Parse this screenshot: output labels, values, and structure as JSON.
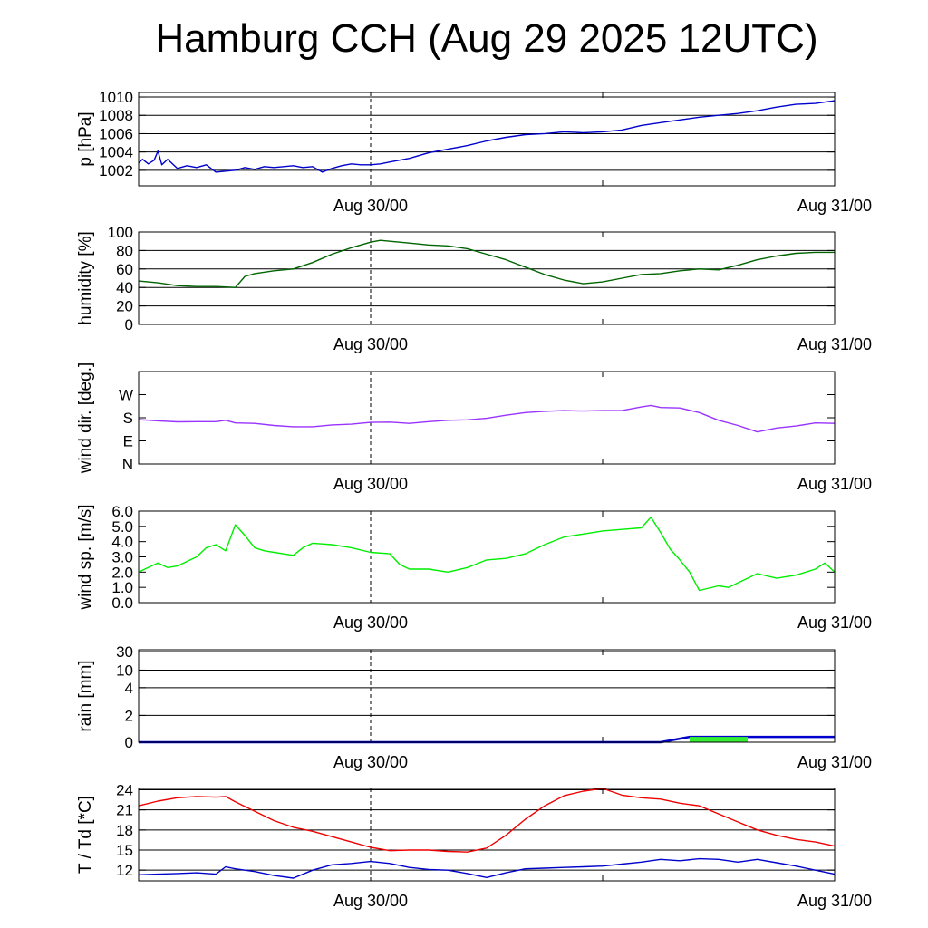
{
  "title": "Hamburg CCH (Aug 29 2025 12UTC)",
  "chart_data": [
    {
      "type": "line",
      "ylabel": "p [hPa]",
      "yticks": [
        1002,
        1004,
        1006,
        1008,
        1010
      ],
      "ylim": [
        1000.3,
        1010.5
      ],
      "x_tick_labels": [
        "Aug 30/00",
        "Aug 31/00"
      ],
      "grid": "horizontal",
      "color": "#0000cc",
      "series": [
        {
          "x": [
            0,
            0.2,
            0.5,
            0.8,
            1,
            1.2,
            1.5,
            2,
            2.5,
            3,
            3.5,
            4,
            4.5,
            5,
            5.5,
            6,
            6.5,
            7,
            7.5,
            8,
            8.5,
            9,
            9.5,
            10,
            10.5,
            11,
            11.5,
            12,
            12.5,
            13,
            14,
            15,
            16,
            17,
            18,
            19,
            20,
            21,
            22,
            23,
            24,
            25,
            26,
            27,
            28,
            29,
            30,
            31,
            32,
            33,
            34,
            35,
            36
          ],
          "values": [
            1002.8,
            1003.2,
            1002.7,
            1003.1,
            1004.1,
            1002.6,
            1003.2,
            1002.2,
            1002.5,
            1002.3,
            1002.6,
            1001.8,
            1001.9,
            1002.0,
            1002.3,
            1002.1,
            1002.4,
            1002.3,
            1002.4,
            1002.5,
            1002.3,
            1002.4,
            1001.8,
            1002.2,
            1002.5,
            1002.7,
            1002.6,
            1002.6,
            1002.7,
            1002.9,
            1003.3,
            1003.9,
            1004.3,
            1004.7,
            1005.2,
            1005.6,
            1005.9,
            1006.0,
            1006.2,
            1006.1,
            1006.2,
            1006.4,
            1006.9,
            1007.2,
            1007.5,
            1007.8,
            1008.0,
            1008.2,
            1008.5,
            1008.9,
            1009.2,
            1009.3,
            1009.6
          ]
        }
      ]
    },
    {
      "type": "line",
      "ylabel": "humidity [%]",
      "yticks": [
        0,
        20,
        40,
        60,
        80,
        100
      ],
      "ylim": [
        0,
        100
      ],
      "x_tick_labels": [
        "Aug 30/00",
        "Aug 31/00"
      ],
      "grid": "horizontal",
      "color": "#006400",
      "series": [
        {
          "x": [
            0,
            1,
            2,
            3,
            4,
            5,
            5.5,
            6,
            7,
            8,
            9,
            10,
            11,
            12,
            12.5,
            13,
            14,
            15,
            16,
            17,
            18,
            19,
            20,
            21,
            22,
            23,
            24,
            25,
            26,
            27,
            28,
            29,
            30,
            31,
            32,
            33,
            34,
            35,
            36
          ],
          "values": [
            47,
            45,
            42,
            41,
            41,
            40,
            52,
            55,
            58,
            60,
            67,
            76,
            83,
            89,
            91,
            90,
            88,
            86,
            85,
            82,
            76,
            70,
            62,
            54,
            48,
            44,
            46,
            50,
            54,
            55,
            58,
            60,
            59,
            64,
            70,
            74,
            77,
            78,
            78
          ]
        }
      ]
    },
    {
      "type": "line",
      "ylabel": "wind dir. [deg.]",
      "ytick_labels": [
        "N",
        "E",
        "S",
        "W"
      ],
      "yticks": [
        0,
        90,
        180,
        270
      ],
      "ylim": [
        0,
        360
      ],
      "x_tick_labels": [
        "Aug 30/00",
        "Aug 31/00"
      ],
      "grid": "none",
      "color": "#9933ff",
      "series": [
        {
          "x": [
            0,
            1,
            2,
            3,
            4,
            4.5,
            5,
            6,
            7,
            8,
            9,
            10,
            11,
            12,
            13,
            14,
            15,
            16,
            17,
            18,
            19,
            20,
            21,
            22,
            23,
            24,
            25,
            26,
            26.5,
            27,
            28,
            29,
            30,
            31,
            32,
            33,
            34,
            35,
            36
          ],
          "values": [
            173,
            168,
            164,
            165,
            165,
            170,
            160,
            158,
            150,
            145,
            145,
            152,
            155,
            162,
            163,
            158,
            165,
            170,
            172,
            178,
            190,
            200,
            205,
            208,
            206,
            208,
            208,
            222,
            228,
            220,
            218,
            200,
            170,
            150,
            125,
            140,
            148,
            160,
            158
          ]
        }
      ]
    },
    {
      "type": "line",
      "ylabel": "wind sp. [m/s]",
      "yticks": [
        0.0,
        1.0,
        2.0,
        3.0,
        4.0,
        5.0,
        6.0
      ],
      "ytick_labels": [
        "0.0",
        "1.0",
        "2.0",
        "3.0",
        "4.0",
        "5.0",
        "6.0"
      ],
      "ylim": [
        0,
        6
      ],
      "x_tick_labels": [
        "Aug 30/00",
        "Aug 31/00"
      ],
      "grid": "none",
      "color": "#00ee00",
      "series": [
        {
          "x": [
            0,
            1,
            1.5,
            2,
            3,
            3.5,
            4,
            4.5,
            5,
            5.5,
            6,
            6.5,
            7,
            8,
            8.5,
            9,
            10,
            11,
            12,
            13,
            13.5,
            14,
            15,
            16,
            17,
            18,
            19,
            20,
            21,
            22,
            23,
            24,
            25,
            26,
            26.5,
            27,
            27.5,
            28,
            28.5,
            29,
            30,
            30.5,
            31,
            32,
            33,
            34,
            35,
            35.5,
            36
          ],
          "values": [
            2.0,
            2.6,
            2.3,
            2.4,
            3.0,
            3.6,
            3.8,
            3.4,
            5.1,
            4.4,
            3.6,
            3.4,
            3.3,
            3.1,
            3.6,
            3.9,
            3.8,
            3.6,
            3.3,
            3.2,
            2.5,
            2.2,
            2.2,
            2.0,
            2.3,
            2.8,
            2.9,
            3.2,
            3.8,
            4.3,
            4.5,
            4.7,
            4.8,
            4.9,
            5.6,
            4.6,
            3.5,
            2.8,
            2.0,
            0.8,
            1.1,
            1.0,
            1.3,
            1.9,
            1.6,
            1.8,
            2.2,
            2.6,
            2.0
          ]
        }
      ]
    },
    {
      "type": "area",
      "ylabel": "rain [mm]",
      "yticks": [
        0,
        2,
        4,
        10,
        30
      ],
      "ytick_labels": [
        "0",
        "2",
        "4",
        "10",
        "30"
      ],
      "x_tick_labels": [
        "Aug 30/00",
        "Aug 31/00"
      ],
      "grid": "horizontal",
      "series": [
        {
          "x": [
            0,
            27,
            28.5,
            36
          ],
          "values": [
            0,
            0,
            0.4,
            0.4
          ],
          "color": "#0000cc"
        },
        {
          "x": [
            28.5,
            31.5
          ],
          "values": [
            0.4,
            0.4
          ],
          "color": "#33ee33"
        }
      ]
    },
    {
      "type": "line",
      "ylabel": "T / Td [*C]",
      "yticks": [
        12,
        15,
        18,
        21,
        24
      ],
      "ylim": [
        10.4,
        24.2
      ],
      "x_tick_labels": [
        "Aug 30/00",
        "Aug 31/00"
      ],
      "grid": "horizontal",
      "series": [
        {
          "x": [
            0,
            1,
            2,
            3,
            4,
            4.5,
            5,
            6,
            7,
            8,
            9,
            10,
            11,
            12,
            13,
            14,
            15,
            16,
            17,
            18,
            19,
            20,
            21,
            22,
            23,
            24,
            25,
            26,
            27,
            28,
            29,
            30,
            31,
            32,
            33,
            34,
            35,
            36
          ],
          "values": [
            21.6,
            22.3,
            22.8,
            23.0,
            22.9,
            23.0,
            22.2,
            20.8,
            19.4,
            18.4,
            17.8,
            17.0,
            16.2,
            15.4,
            14.9,
            15.0,
            15.0,
            14.8,
            14.7,
            15.3,
            17.2,
            19.6,
            21.6,
            23.1,
            23.8,
            24.2,
            23.2,
            22.8,
            22.6,
            22.0,
            21.6,
            20.4,
            19.2,
            18.0,
            17.2,
            16.6,
            16.2,
            15.6
          ],
          "color": "#ee0000"
        },
        {
          "x": [
            0,
            1,
            2,
            3,
            4,
            4.5,
            5,
            6,
            7,
            8,
            9,
            10,
            11,
            12,
            13,
            14,
            15,
            16,
            17,
            18,
            19,
            20,
            21,
            22,
            23,
            24,
            25,
            26,
            27,
            28,
            29,
            30,
            31,
            32,
            33,
            34,
            35,
            36
          ],
          "values": [
            11.3,
            11.4,
            11.5,
            11.6,
            11.4,
            12.5,
            12.2,
            11.8,
            11.2,
            10.8,
            12.0,
            12.8,
            13.0,
            13.3,
            13.0,
            12.4,
            12.1,
            12.0,
            11.5,
            10.9,
            11.6,
            12.2,
            12.3,
            12.4,
            12.5,
            12.6,
            12.9,
            13.2,
            13.6,
            13.4,
            13.7,
            13.6,
            13.2,
            13.6,
            13.1,
            12.6,
            12.0,
            11.4
          ],
          "color": "#0000cc"
        }
      ]
    }
  ]
}
